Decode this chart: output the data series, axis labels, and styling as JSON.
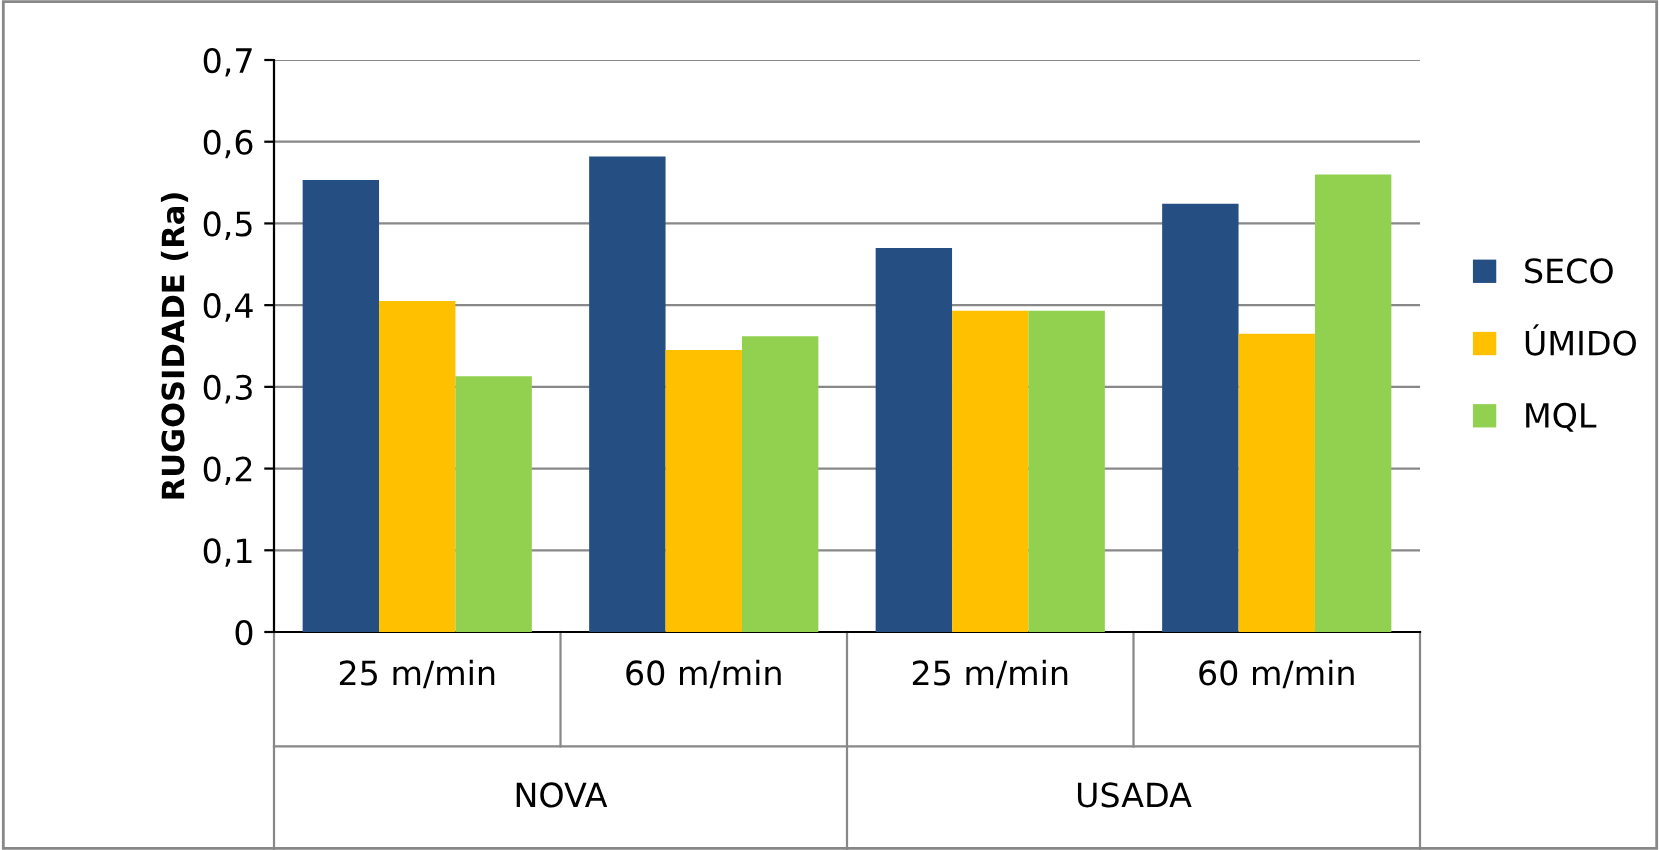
{
  "chart_data": {
    "type": "bar",
    "ylabel": "RUGOSIDADE (Ra)",
    "categories": [
      "25 m/min",
      "60 m/min",
      "25 m/min",
      "60 m/min"
    ],
    "series": [
      {
        "name": "SECO",
        "color": "#254e83",
        "values": [
          0.553,
          0.582,
          0.47,
          0.524
        ]
      },
      {
        "name": "ÚMIDO",
        "color": "#ffc000",
        "values": [
          0.405,
          0.345,
          0.393,
          0.365
        ]
      },
      {
        "name": "MQL",
        "color": "#92d050",
        "values": [
          0.313,
          0.362,
          0.393,
          0.56
        ]
      }
    ],
    "annotations": [
      "NOVA",
      "USADA"
    ],
    "ylim": [
      0,
      0.7
    ],
    "yticks": [
      {
        "value": 0,
        "label": "0"
      },
      {
        "value": 0.1,
        "label": "0,1"
      },
      {
        "value": 0.2,
        "label": "0,2"
      },
      {
        "value": 0.3,
        "label": "0,3"
      },
      {
        "value": 0.4,
        "label": "0,4"
      },
      {
        "value": 0.5,
        "label": "0,5"
      },
      {
        "value": 0.6,
        "label": "0,6"
      },
      {
        "value": 0.7,
        "label": "0,7"
      }
    ],
    "grid": "y",
    "legend": "right"
  }
}
